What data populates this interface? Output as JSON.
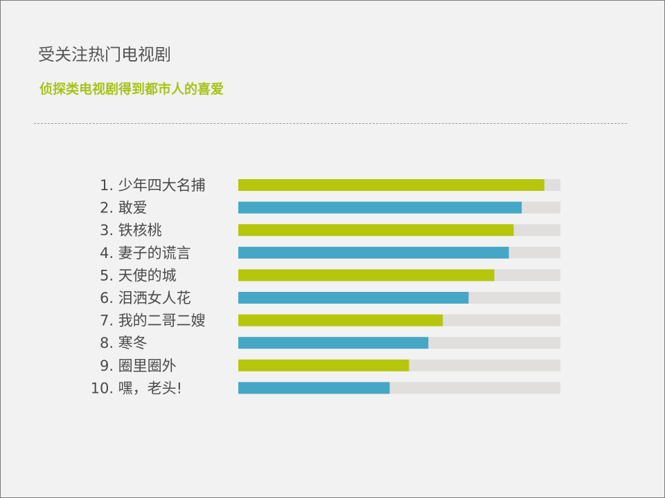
{
  "slide": {
    "title": "受关注热门电视剧",
    "subtitle": "侦探类电视剧得到都市人的喜爱"
  },
  "colors": {
    "accent_green": "#b5c60c",
    "accent_blue": "#45a7c5",
    "track": "#e1dfdd",
    "title_text": "#555555",
    "subtitle_text": "#a8c21a"
  },
  "chart_data": {
    "type": "bar",
    "orientation": "horizontal",
    "title": "",
    "xlabel": "",
    "ylabel": "",
    "xlim": [
      0,
      100
    ],
    "categories": [
      "1. 少年四大名捕",
      "2. 敢爱",
      "3. 铁核桃",
      "4. 妻子的谎言",
      "5. 天使的城",
      "6. 泪洒女人花",
      "7. 我的二哥二嫂",
      "8. 寒冬",
      "9. 圈里圈外",
      "10. 嘿，老头!"
    ],
    "values": [
      95,
      88,
      85.5,
      84,
      79.5,
      71.5,
      63.5,
      59,
      53,
      47
    ],
    "bar_colors": [
      "green",
      "blue",
      "green",
      "blue",
      "green",
      "blue",
      "green",
      "blue",
      "green",
      "blue"
    ],
    "grid": false,
    "legend": "none"
  }
}
